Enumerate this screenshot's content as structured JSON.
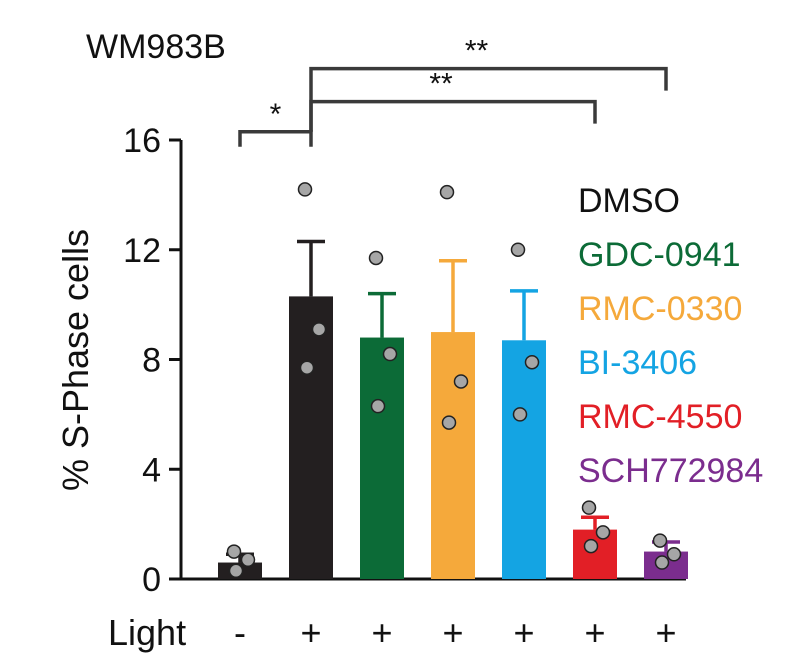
{
  "chart_data": {
    "type": "bar",
    "title": "WM983B",
    "ylabel": "% S-Phase cells",
    "xlabel": "Light",
    "ylim": [
      0,
      16
    ],
    "yticks": [
      0,
      4,
      8,
      12,
      16
    ],
    "light": [
      "-",
      "+",
      "+",
      "+",
      "+",
      "+",
      "+"
    ],
    "categories": [
      "DMSO (dark)",
      "DMSO",
      "GDC-0941",
      "RMC-0330",
      "BI-3406",
      "RMC-4550",
      "SCH772984"
    ],
    "values": [
      0.6,
      10.3,
      8.8,
      9.0,
      8.7,
      1.8,
      1.0
    ],
    "errors": [
      0.3,
      2.0,
      1.6,
      2.6,
      1.8,
      0.45,
      0.35
    ],
    "points": [
      [
        1.0,
        0.7,
        0.3
      ],
      [
        14.2,
        9.1,
        7.7
      ],
      [
        11.7,
        8.2,
        6.3
      ],
      [
        14.1,
        7.2,
        5.7
      ],
      [
        12.0,
        7.9,
        6.0
      ],
      [
        2.6,
        1.7,
        1.2
      ],
      [
        1.4,
        0.9,
        0.6
      ]
    ],
    "colors": [
      "#231f20",
      "#231f20",
      "#0c6b37",
      "#f5a93b",
      "#14a4e3",
      "#e21f26",
      "#7b2d8e"
    ],
    "legend": [
      {
        "label": "DMSO",
        "color": "#111111"
      },
      {
        "label": "GDC-0941",
        "color": "#0c6b37"
      },
      {
        "label": "RMC-0330",
        "color": "#f5a93b"
      },
      {
        "label": "BI-3406",
        "color": "#14a4e3"
      },
      {
        "label": "RMC-4550",
        "color": "#e21f26"
      },
      {
        "label": "SCH772984",
        "color": "#7b2d8e"
      }
    ],
    "significance": [
      {
        "from": 0,
        "to": 1,
        "label": "*",
        "level": 16.3
      },
      {
        "from": 1,
        "to": 5,
        "label": "**",
        "level": 17.4
      },
      {
        "from": 1,
        "to": 6,
        "label": "**",
        "level": 18.6
      }
    ]
  }
}
